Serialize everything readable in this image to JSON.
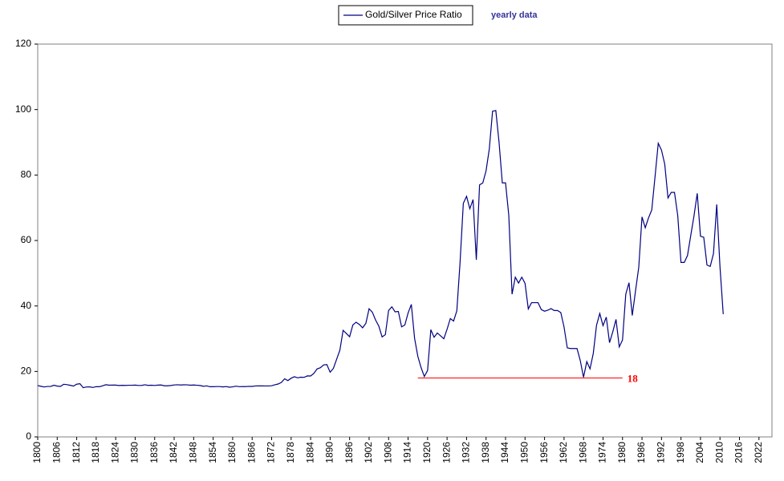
{
  "chart_data": {
    "type": "line",
    "legend": "top",
    "subtitle": "yearly data",
    "x": [
      1800,
      1801,
      1802,
      1803,
      1804,
      1805,
      1806,
      1807,
      1808,
      1809,
      1810,
      1811,
      1812,
      1813,
      1814,
      1815,
      1816,
      1817,
      1818,
      1819,
      1820,
      1821,
      1822,
      1823,
      1824,
      1825,
      1826,
      1827,
      1828,
      1829,
      1830,
      1831,
      1832,
      1833,
      1834,
      1835,
      1836,
      1837,
      1838,
      1839,
      1840,
      1841,
      1842,
      1843,
      1844,
      1845,
      1846,
      1847,
      1848,
      1849,
      1850,
      1851,
      1852,
      1853,
      1854,
      1855,
      1856,
      1857,
      1858,
      1859,
      1860,
      1861,
      1862,
      1863,
      1864,
      1865,
      1866,
      1867,
      1868,
      1869,
      1870,
      1871,
      1872,
      1873,
      1874,
      1875,
      1876,
      1877,
      1878,
      1879,
      1880,
      1881,
      1882,
      1883,
      1884,
      1885,
      1886,
      1887,
      1888,
      1889,
      1890,
      1891,
      1892,
      1893,
      1894,
      1895,
      1896,
      1897,
      1898,
      1899,
      1900,
      1901,
      1902,
      1903,
      1904,
      1905,
      1906,
      1907,
      1908,
      1909,
      1910,
      1911,
      1912,
      1913,
      1914,
      1915,
      1916,
      1917,
      1918,
      1919,
      1920,
      1921,
      1922,
      1923,
      1924,
      1925,
      1926,
      1927,
      1928,
      1929,
      1930,
      1931,
      1932,
      1933,
      1934,
      1935,
      1936,
      1937,
      1938,
      1939,
      1940,
      1941,
      1942,
      1943,
      1944,
      1945,
      1946,
      1947,
      1948,
      1949,
      1950,
      1951,
      1952,
      1953,
      1954,
      1955,
      1956,
      1957,
      1958,
      1959,
      1960,
      1961,
      1962,
      1963,
      1964,
      1965,
      1966,
      1967,
      1968,
      1969,
      1970,
      1971,
      1972,
      1973,
      1974,
      1975,
      1976,
      1977,
      1978,
      1979,
      1980,
      1981,
      1982,
      1983,
      1984,
      1985,
      1986,
      1987,
      1988,
      1989,
      1990,
      1991,
      1992,
      1993,
      1994,
      1995,
      1996,
      1997,
      1998,
      1999,
      2000,
      2001,
      2002,
      2003,
      2004,
      2005,
      2006,
      2007,
      2008,
      2009,
      2010,
      2011
    ],
    "series": [
      {
        "name": "Gold/Silver Price Ratio",
        "color": "#000080",
        "values": [
          15.68,
          15.46,
          15.26,
          15.41,
          15.41,
          15.79,
          15.52,
          15.43,
          16.08,
          15.96,
          15.77,
          15.53,
          16.11,
          16.25,
          15.04,
          15.26,
          15.28,
          15.11,
          15.35,
          15.33,
          15.62,
          15.95,
          15.8,
          15.84,
          15.82,
          15.7,
          15.76,
          15.74,
          15.78,
          15.78,
          15.82,
          15.72,
          15.73,
          15.93,
          15.73,
          15.8,
          15.72,
          15.83,
          15.85,
          15.62,
          15.62,
          15.7,
          15.87,
          15.93,
          15.85,
          15.92,
          15.9,
          15.8,
          15.85,
          15.78,
          15.7,
          15.46,
          15.59,
          15.33,
          15.33,
          15.38,
          15.38,
          15.27,
          15.38,
          15.19,
          15.29,
          15.5,
          15.35,
          15.37,
          15.37,
          15.44,
          15.43,
          15.57,
          15.59,
          15.6,
          15.57,
          15.57,
          15.63,
          15.93,
          16.16,
          16.64,
          17.75,
          17.2,
          17.92,
          18.39,
          18.05,
          18.25,
          18.2,
          18.64,
          18.61,
          19.41,
          20.78,
          21.13,
          21.99,
          22.1,
          19.76,
          20.92,
          23.72,
          26.49,
          32.56,
          31.6,
          30.59,
          34.2,
          35.03,
          34.36,
          33.33,
          34.68,
          39.15,
          38.1,
          35.7,
          33.82,
          30.54,
          31.24,
          38.64,
          39.74,
          38.22,
          38.33,
          33.62,
          34.19,
          37.85,
          40.48,
          30.11,
          24.61,
          21.18,
          18.44,
          20.28,
          32.76,
          30.43,
          31.75,
          30.88,
          29.99,
          32.88,
          36.16,
          35.4,
          38.5,
          53.38,
          71.35,
          73.5,
          69.7,
          72.5,
          54.1,
          77.0,
          77.6,
          81.3,
          88.0,
          99.5,
          99.7,
          90.0,
          77.6,
          77.6,
          67.6,
          43.6,
          48.8,
          47.0,
          48.8,
          46.9,
          39.1,
          41.0,
          41.0,
          41.0,
          38.9,
          38.4,
          38.7,
          39.2,
          38.6,
          38.6,
          38.0,
          33.6,
          27.2,
          27.0,
          27.0,
          27.0,
          23.3,
          18.2,
          23.0,
          20.8,
          25.5,
          34.1,
          37.7,
          34.0,
          36.6,
          28.8,
          32.1,
          35.9,
          27.5,
          29.6,
          43.6,
          47.1,
          37.1,
          44.6,
          51.8,
          67.2,
          63.9,
          66.9,
          69.3,
          79.4,
          89.7,
          87.6,
          83.3,
          73.0,
          74.7,
          74.7,
          67.6,
          53.3,
          53.3,
          55.4,
          61.5,
          67.5,
          74.4,
          61.3,
          61.0,
          52.5,
          52.1,
          56.0,
          71.0,
          52.0,
          37.5
        ]
      }
    ],
    "annotations": [
      {
        "text": "18",
        "value": 18,
        "x_start": 1917,
        "x_end": 1980,
        "color": "#ff0000"
      }
    ],
    "xlim": [
      1800,
      2026
    ],
    "xticks": [
      1800,
      1806,
      1812,
      1818,
      1824,
      1830,
      1836,
      1842,
      1848,
      1854,
      1860,
      1866,
      1872,
      1878,
      1884,
      1890,
      1896,
      1902,
      1908,
      1914,
      1920,
      1926,
      1932,
      1938,
      1944,
      1950,
      1956,
      1962,
      1968,
      1974,
      1980,
      1986,
      1992,
      1998,
      2004,
      2010,
      2016,
      2022
    ],
    "ylim": [
      0,
      120
    ],
    "yticks": [
      0,
      20,
      40,
      60,
      80,
      100,
      120
    ],
    "grid": false
  }
}
